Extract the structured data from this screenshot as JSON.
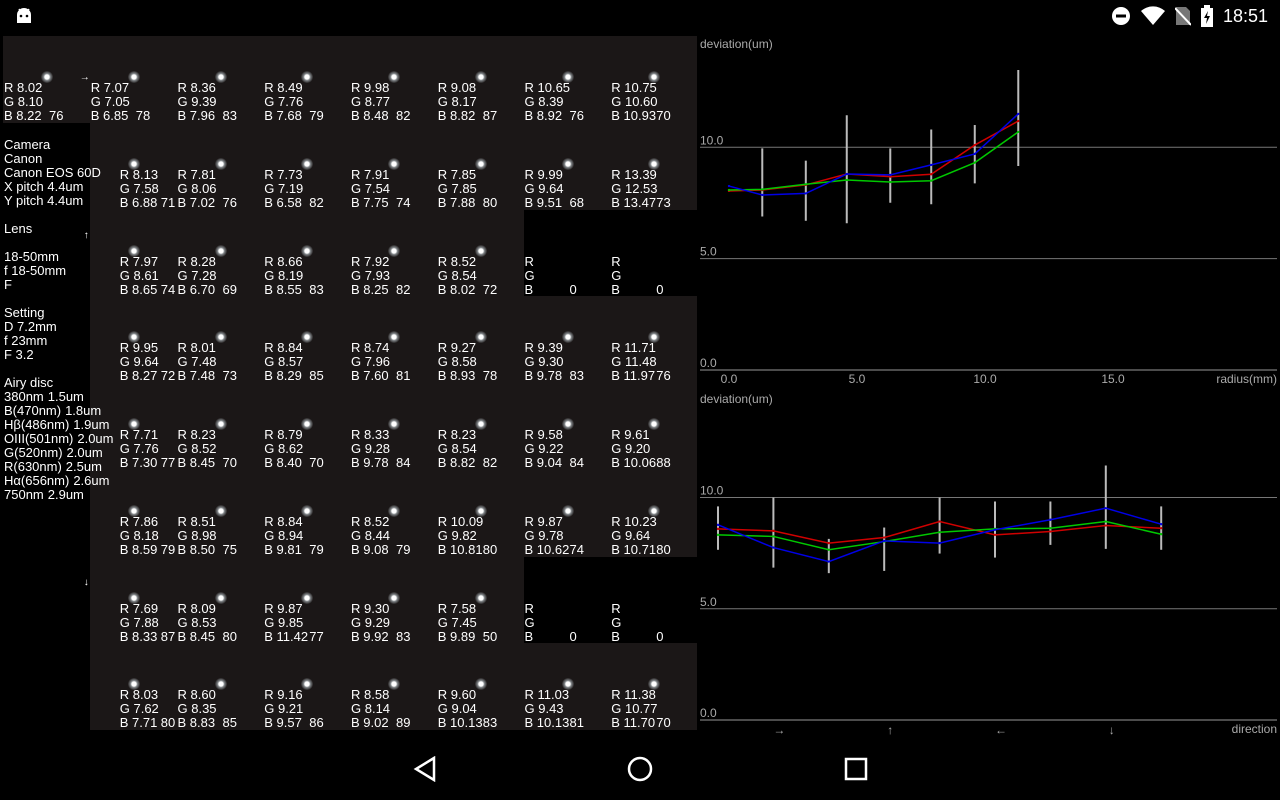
{
  "status_bar": {
    "time": "18:51",
    "icons": [
      "android-icon",
      "do-not-disturb-icon",
      "wifi-icon",
      "no-sim-icon",
      "battery-charging-icon"
    ]
  },
  "grid": {
    "arrows": [
      {
        "symbol": "→",
        "row": 0,
        "col": 1
      },
      {
        "symbol": "↑",
        "row": 2,
        "col": 1
      },
      {
        "symbol": "↓",
        "row": 6,
        "col": 1
      }
    ],
    "rows": [
      [
        {
          "r": "8.02",
          "g": "8.10",
          "b": "8.22",
          "n": "76"
        },
        {
          "r": "7.07",
          "g": "7.05",
          "b": "6.85",
          "n": "78"
        },
        {
          "r": "8.36",
          "g": "9.39",
          "b": "7.96",
          "n": "83"
        },
        {
          "r": "8.49",
          "g": "7.76",
          "b": "7.68",
          "n": "79"
        },
        {
          "r": "9.98",
          "g": "8.77",
          "b": "8.48",
          "n": "82"
        },
        {
          "r": "9.08",
          "g": "8.17",
          "b": "8.82",
          "n": "87"
        },
        {
          "r": "10.65",
          "g": "8.39",
          "b": "8.92",
          "n": "76"
        },
        {
          "r": "10.75",
          "g": "10.60",
          "b": "10.93",
          "n": "70"
        }
      ],
      [
        null,
        {
          "r": "8.13",
          "g": "7.58",
          "b": "6.88",
          "n": "71"
        },
        {
          "r": "7.81",
          "g": "8.06",
          "b": "7.02",
          "n": "76"
        },
        {
          "r": "7.73",
          "g": "7.19",
          "b": "6.58",
          "n": "82"
        },
        {
          "r": "7.91",
          "g": "7.54",
          "b": "7.75",
          "n": "74"
        },
        {
          "r": "7.85",
          "g": "7.85",
          "b": "7.88",
          "n": "80"
        },
        {
          "r": "9.99",
          "g": "9.64",
          "b": "9.51",
          "n": "68"
        },
        {
          "r": "13.39",
          "g": "12.53",
          "b": "13.47",
          "n": "73"
        }
      ],
      [
        null,
        {
          "r": "7.97",
          "g": "8.61",
          "b": "8.65",
          "n": "74"
        },
        {
          "r": "8.28",
          "g": "7.28",
          "b": "6.70",
          "n": "69"
        },
        {
          "r": "8.66",
          "g": "8.19",
          "b": "8.55",
          "n": "83"
        },
        {
          "r": "7.92",
          "g": "7.93",
          "b": "8.25",
          "n": "82"
        },
        {
          "r": "8.52",
          "g": "8.54",
          "b": "8.02",
          "n": "72"
        },
        {
          "r": "",
          "g": "",
          "b": "",
          "n": "0",
          "empty": true
        },
        {
          "r": "",
          "g": "",
          "b": "",
          "n": "0",
          "empty": true
        }
      ],
      [
        null,
        {
          "r": "9.95",
          "g": "9.64",
          "b": "8.27",
          "n": "72"
        },
        {
          "r": "8.01",
          "g": "7.48",
          "b": "7.48",
          "n": "73"
        },
        {
          "r": "8.84",
          "g": "8.57",
          "b": "8.29",
          "n": "85"
        },
        {
          "r": "8.74",
          "g": "7.96",
          "b": "7.60",
          "n": "81"
        },
        {
          "r": "9.27",
          "g": "8.58",
          "b": "8.93",
          "n": "78"
        },
        {
          "r": "9.39",
          "g": "9.30",
          "b": "9.78",
          "n": "83"
        },
        {
          "r": "11.71",
          "g": "11.48",
          "b": "11.97",
          "n": "76"
        }
      ],
      [
        null,
        {
          "r": "7.71",
          "g": "7.76",
          "b": "7.30",
          "n": "77"
        },
        {
          "r": "8.23",
          "g": "8.52",
          "b": "8.45",
          "n": "70"
        },
        {
          "r": "8.79",
          "g": "8.62",
          "b": "8.40",
          "n": "70"
        },
        {
          "r": "8.33",
          "g": "9.28",
          "b": "9.78",
          "n": "84"
        },
        {
          "r": "8.23",
          "g": "8.54",
          "b": "8.82",
          "n": "82"
        },
        {
          "r": "9.58",
          "g": "9.22",
          "b": "9.04",
          "n": "84"
        },
        {
          "r": "9.61",
          "g": "9.20",
          "b": "10.06",
          "n": "88"
        }
      ],
      [
        null,
        {
          "r": "7.86",
          "g": "8.18",
          "b": "8.59",
          "n": "79"
        },
        {
          "r": "8.51",
          "g": "8.98",
          "b": "8.50",
          "n": "75"
        },
        {
          "r": "8.84",
          "g": "8.94",
          "b": "9.81",
          "n": "79"
        },
        {
          "r": "8.52",
          "g": "8.44",
          "b": "9.08",
          "n": "79"
        },
        {
          "r": "10.09",
          "g": "9.82",
          "b": "10.81",
          "n": "80"
        },
        {
          "r": "9.87",
          "g": "9.78",
          "b": "10.62",
          "n": "74"
        },
        {
          "r": "10.23",
          "g": "9.64",
          "b": "10.71",
          "n": "80"
        }
      ],
      [
        null,
        {
          "r": "7.69",
          "g": "7.88",
          "b": "8.33",
          "n": "87"
        },
        {
          "r": "8.09",
          "g": "8.53",
          "b": "8.45",
          "n": "80"
        },
        {
          "r": "9.87",
          "g": "9.85",
          "b": "11.42",
          "n": "77"
        },
        {
          "r": "9.30",
          "g": "9.29",
          "b": "9.92",
          "n": "83"
        },
        {
          "r": "7.58",
          "g": "7.45",
          "b": "9.89",
          "n": "50"
        },
        {
          "r": "",
          "g": "",
          "b": "",
          "n": "0",
          "empty": true
        },
        {
          "r": "",
          "g": "",
          "b": "",
          "n": "0",
          "empty": true
        }
      ],
      [
        null,
        {
          "r": "8.03",
          "g": "7.62",
          "b": "7.71",
          "n": "80"
        },
        {
          "r": "8.60",
          "g": "8.35",
          "b": "8.83",
          "n": "85"
        },
        {
          "r": "9.16",
          "g": "9.21",
          "b": "9.57",
          "n": "86"
        },
        {
          "r": "8.58",
          "g": "8.14",
          "b": "9.02",
          "n": "89"
        },
        {
          "r": "9.60",
          "g": "9.04",
          "b": "10.13",
          "n": "83"
        },
        {
          "r": "11.03",
          "g": "9.43",
          "b": "10.13",
          "n": "81"
        },
        {
          "r": "11.38",
          "g": "10.77",
          "b": "11.70",
          "n": "70"
        }
      ]
    ]
  },
  "info": {
    "camera": [
      "Camera",
      "Canon",
      "Canon EOS 60D",
      "X pitch 4.4um",
      "Y pitch 4.4um"
    ],
    "lens": [
      "Lens",
      "",
      "18-50mm",
      "f 18-50mm",
      "F"
    ],
    "setting": [
      "Setting",
      "D 7.2mm",
      "f 23mm",
      "F 3.2"
    ],
    "airy_title": "Airy disc",
    "airy": [
      {
        "name": "380nm",
        "value": "1.5um"
      },
      {
        "name": "B(470nm)",
        "value": "1.8um"
      },
      {
        "name": "Hβ(486nm)",
        "value": "1.9um"
      },
      {
        "name": "OIII(501nm)",
        "value": "2.0um"
      },
      {
        "name": "G(520nm)",
        "value": "2.0um"
      },
      {
        "name": "R(630nm)",
        "value": "2.5um"
      },
      {
        "name": "Hα(656nm)",
        "value": "2.6um"
      },
      {
        "name": "750nm",
        "value": "2.9um"
      }
    ]
  },
  "colors": {
    "red": "#d00000",
    "green": "#00c800",
    "blue": "#0000e6",
    "error_bar": "#bbbbbb",
    "grid": "#777777"
  },
  "chart_data": [
    {
      "type": "line",
      "ylabel": "deviation(um)",
      "xlabel": "radius(mm)",
      "xlim": [
        0,
        21
      ],
      "ylim": [
        0,
        14
      ],
      "xticks": [
        "0.0",
        "5.0",
        "10.0",
        "15.0"
      ],
      "yticks": [
        "10.0",
        "5.0",
        "0.0"
      ],
      "grid": true,
      "x": [
        0,
        1.3,
        3.0,
        4.6,
        6.3,
        7.9,
        9.6,
        11.3
      ],
      "series": [
        {
          "color": "red",
          "values": [
            8.04,
            8.08,
            8.31,
            8.8,
            8.68,
            8.79,
            10.1,
            11.18
          ]
        },
        {
          "color": "green",
          "values": [
            8.08,
            8.11,
            8.34,
            8.53,
            8.44,
            8.5,
            9.31,
            10.69
          ]
        },
        {
          "color": "blue",
          "values": [
            8.26,
            7.86,
            7.93,
            8.8,
            8.76,
            9.21,
            9.7,
            11.5
          ]
        }
      ],
      "error_ranges": [
        null,
        [
          6.89,
          9.95
        ],
        [
          6.7,
          9.4
        ],
        [
          6.59,
          11.44
        ],
        [
          7.51,
          9.95
        ],
        [
          7.44,
          10.8
        ],
        [
          8.38,
          11.0
        ],
        [
          9.16,
          13.47
        ]
      ]
    },
    {
      "type": "line",
      "ylabel": "deviation(um)",
      "xlabel": "direction",
      "ylim": [
        0,
        14
      ],
      "xticks": [
        {
          "index": 1,
          "label": "→"
        },
        {
          "index": 3,
          "label": "↑"
        },
        {
          "index": 5,
          "label": "←"
        },
        {
          "index": 7,
          "label": "↓"
        }
      ],
      "yticks": [
        "10.0",
        "5.0",
        "0.0"
      ],
      "grid": true,
      "x": [
        0,
        1,
        2,
        3,
        4,
        5,
        6,
        7,
        8
      ],
      "series": [
        {
          "color": "red",
          "values": [
            8.59,
            8.5,
            7.95,
            8.2,
            8.92,
            8.32,
            8.47,
            8.74,
            8.62
          ]
        },
        {
          "color": "green",
          "values": [
            8.32,
            8.25,
            7.65,
            8.02,
            8.44,
            8.59,
            8.62,
            8.92,
            8.35
          ]
        },
        {
          "color": "blue",
          "values": [
            8.77,
            7.75,
            7.12,
            8.05,
            7.95,
            8.55,
            9.0,
            9.52,
            8.8
          ]
        }
      ],
      "error_ranges": [
        [
          7.65,
          9.6
        ],
        [
          6.85,
          10.0
        ],
        [
          6.6,
          8.14
        ],
        [
          6.7,
          8.65
        ],
        [
          7.48,
          10.0
        ],
        [
          7.3,
          9.82
        ],
        [
          7.87,
          9.82
        ],
        [
          7.69,
          11.44
        ],
        [
          7.65,
          9.6
        ]
      ]
    }
  ],
  "nav_bar": {
    "buttons": [
      "back",
      "home",
      "recents"
    ]
  }
}
